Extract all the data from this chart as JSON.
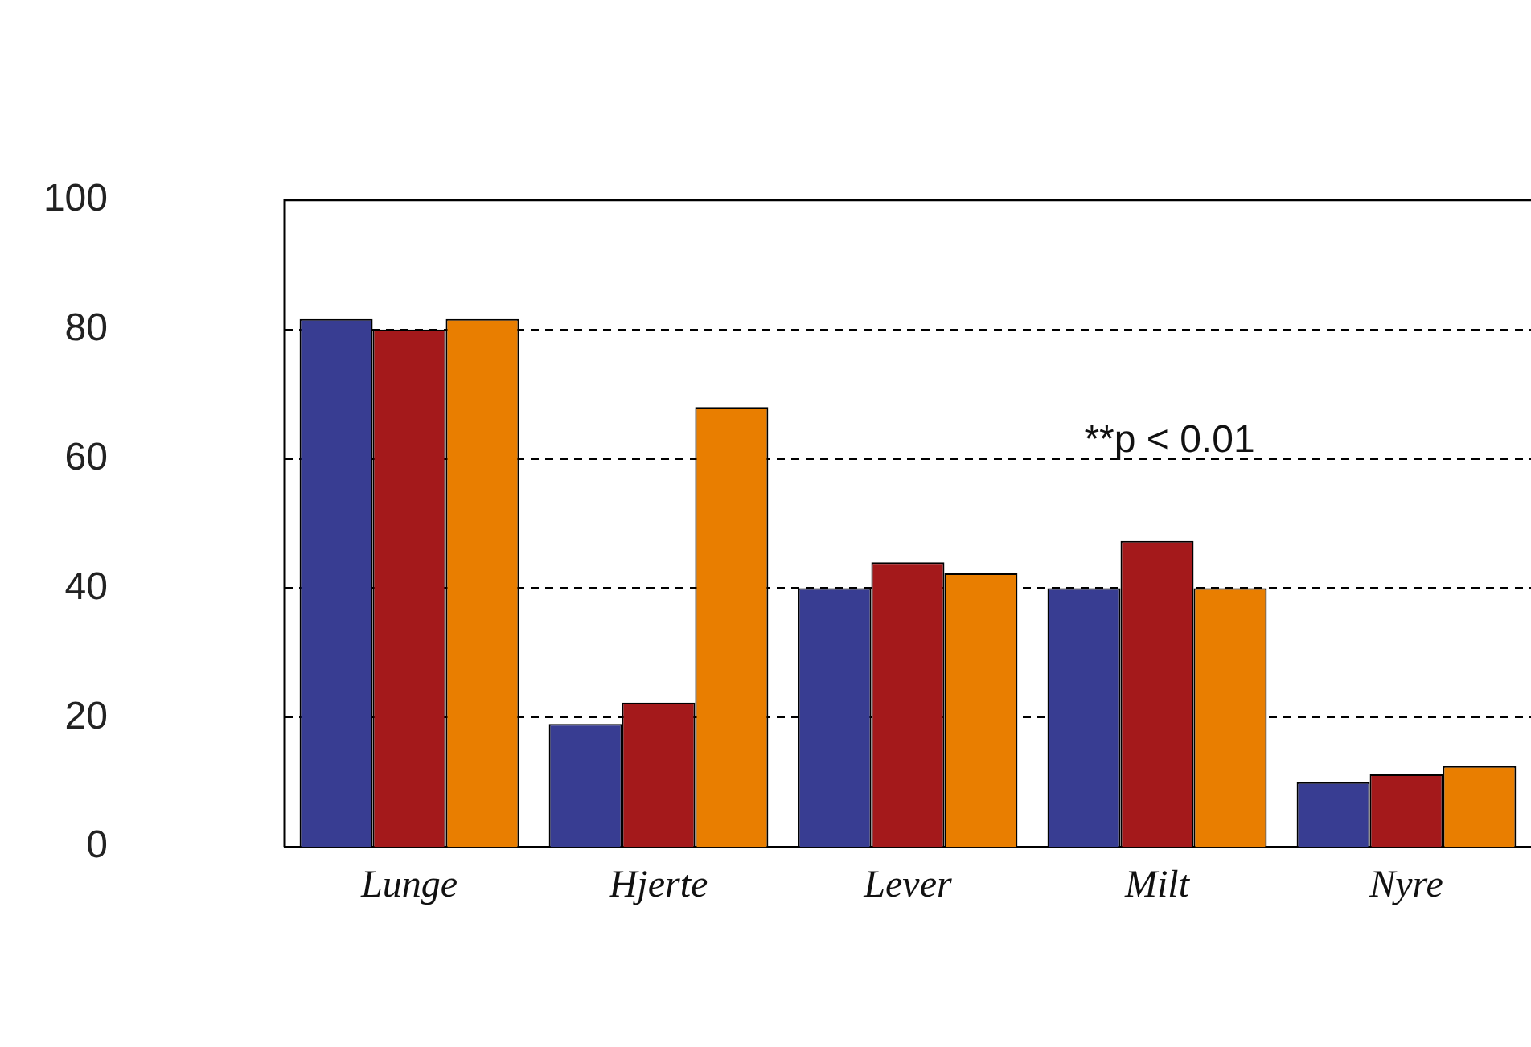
{
  "chart_data": {
    "type": "bar",
    "categories": [
      "Lunge",
      "Hjerte",
      "Lever",
      "Milt",
      "Nyre"
    ],
    "series": [
      {
        "color": "#383d92",
        "values": [
          81.6,
          19,
          40,
          40,
          10
        ]
      },
      {
        "color": "#a4191b",
        "values": [
          80,
          22.3,
          44,
          47.3,
          11.2
        ]
      },
      {
        "color": "#e97e00",
        "values": [
          81.6,
          68,
          42.3,
          40,
          12.5
        ]
      }
    ],
    "ylim": [
      0,
      100
    ],
    "yticks": [
      0,
      20,
      40,
      60,
      80,
      100
    ],
    "grid": "y",
    "legend": false,
    "annotations": [
      "**p < 0.01"
    ]
  }
}
